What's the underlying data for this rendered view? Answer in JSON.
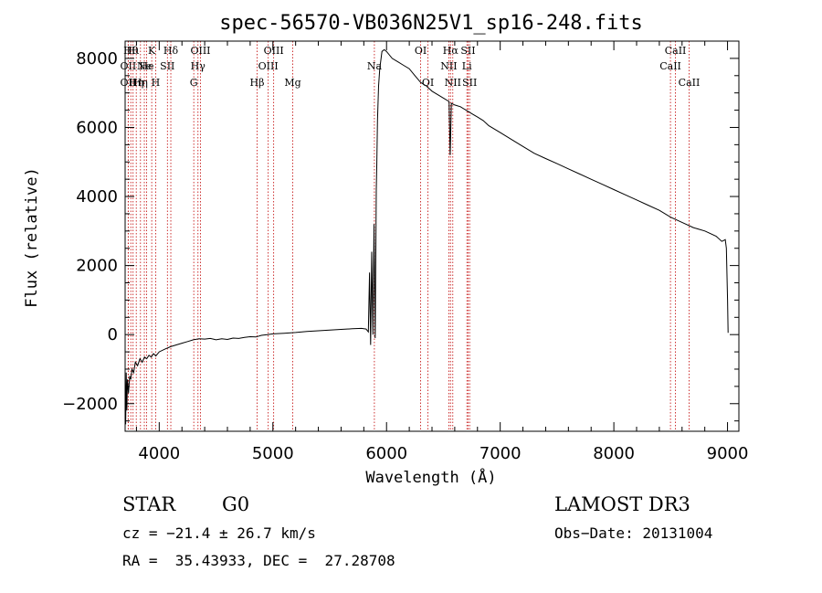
{
  "chart_data": {
    "type": "line",
    "title": "spec-56570-VB036N25V1_sp16-248.fits",
    "xlabel": "Wavelength (Å)",
    "ylabel": "Flux (relative)",
    "xlim": [
      3700,
      9100
    ],
    "ylim": [
      -2800,
      8500
    ],
    "xticks": [
      4000,
      5000,
      6000,
      7000,
      8000,
      9000
    ],
    "yticks": [
      -2000,
      0,
      2000,
      4000,
      6000,
      8000
    ],
    "xtick_labels": [
      "4000",
      "5000",
      "6000",
      "7000",
      "8000",
      "9000"
    ],
    "ytick_labels": [
      "−2000",
      "0",
      "2000",
      "4000",
      "6000",
      "8000"
    ],
    "series": [
      {
        "name": "flux",
        "points": [
          [
            3700,
            -1400
          ],
          [
            3705,
            -2600
          ],
          [
            3710,
            -1100
          ],
          [
            3715,
            -2200
          ],
          [
            3720,
            -1300
          ],
          [
            3730,
            -1700
          ],
          [
            3740,
            -1200
          ],
          [
            3750,
            -1300
          ],
          [
            3760,
            -1000
          ],
          [
            3775,
            -1100
          ],
          [
            3790,
            -800
          ],
          [
            3810,
            -900
          ],
          [
            3830,
            -700
          ],
          [
            3850,
            -800
          ],
          [
            3870,
            -650
          ],
          [
            3890,
            -700
          ],
          [
            3910,
            -600
          ],
          [
            3930,
            -650
          ],
          [
            3950,
            -550
          ],
          [
            3970,
            -620
          ],
          [
            4000,
            -500
          ],
          [
            4050,
            -420
          ],
          [
            4100,
            -350
          ],
          [
            4150,
            -300
          ],
          [
            4200,
            -250
          ],
          [
            4250,
            -200
          ],
          [
            4300,
            -150
          ],
          [
            4350,
            -120
          ],
          [
            4400,
            -130
          ],
          [
            4450,
            -110
          ],
          [
            4500,
            -150
          ],
          [
            4550,
            -120
          ],
          [
            4600,
            -140
          ],
          [
            4650,
            -100
          ],
          [
            4700,
            -110
          ],
          [
            4750,
            -80
          ],
          [
            4800,
            -60
          ],
          [
            4850,
            -70
          ],
          [
            4900,
            -20
          ],
          [
            4950,
            0
          ],
          [
            5000,
            20
          ],
          [
            5100,
            40
          ],
          [
            5200,
            60
          ],
          [
            5300,
            90
          ],
          [
            5400,
            110
          ],
          [
            5500,
            130
          ],
          [
            5600,
            150
          ],
          [
            5700,
            170
          ],
          [
            5780,
            180
          ],
          [
            5820,
            160
          ],
          [
            5840,
            80
          ],
          [
            5850,
            1800
          ],
          [
            5860,
            -300
          ],
          [
            5870,
            2400
          ],
          [
            5880,
            0
          ],
          [
            5890,
            3200
          ],
          [
            5900,
            -100
          ],
          [
            5910,
            4200
          ],
          [
            5915,
            5000
          ],
          [
            5920,
            6200
          ],
          [
            5930,
            7200
          ],
          [
            5940,
            7700
          ],
          [
            5960,
            8200
          ],
          [
            5980,
            8250
          ],
          [
            6000,
            8200
          ],
          [
            6050,
            8000
          ],
          [
            6100,
            7900
          ],
          [
            6150,
            7800
          ],
          [
            6200,
            7700
          ],
          [
            6250,
            7500
          ],
          [
            6300,
            7300
          ],
          [
            6350,
            7200
          ],
          [
            6400,
            7050
          ],
          [
            6450,
            6950
          ],
          [
            6500,
            6850
          ],
          [
            6550,
            6750
          ],
          [
            6560,
            5200
          ],
          [
            6570,
            6700
          ],
          [
            6600,
            6650
          ],
          [
            6650,
            6600
          ],
          [
            6700,
            6500
          ],
          [
            6750,
            6400
          ],
          [
            6800,
            6300
          ],
          [
            6850,
            6200
          ],
          [
            6900,
            6050
          ],
          [
            7000,
            5850
          ],
          [
            7100,
            5650
          ],
          [
            7200,
            5450
          ],
          [
            7300,
            5250
          ],
          [
            7400,
            5100
          ],
          [
            7500,
            4950
          ],
          [
            7600,
            4800
          ],
          [
            7700,
            4650
          ],
          [
            7800,
            4500
          ],
          [
            7900,
            4350
          ],
          [
            8000,
            4200
          ],
          [
            8100,
            4050
          ],
          [
            8200,
            3900
          ],
          [
            8300,
            3750
          ],
          [
            8400,
            3600
          ],
          [
            8500,
            3400
          ],
          [
            8600,
            3250
          ],
          [
            8700,
            3100
          ],
          [
            8800,
            3000
          ],
          [
            8900,
            2850
          ],
          [
            8950,
            2700
          ],
          [
            8980,
            2750
          ],
          [
            8990,
            2500
          ],
          [
            9000,
            1000
          ],
          [
            9005,
            50
          ]
        ]
      }
    ],
    "lines": [
      {
        "wl": 3727,
        "label": "OII",
        "row": 1
      },
      {
        "wl": 3727,
        "label": "OII",
        "row": 2
      },
      {
        "wl": 3750,
        "label": "Hθ",
        "row": 0
      },
      {
        "wl": 3770,
        "label": "Hι",
        "row": 0
      },
      {
        "wl": 3798,
        "label": "Hη",
        "row": 2
      },
      {
        "wl": 3835,
        "label": "Hη",
        "row": 2
      },
      {
        "wl": 3869,
        "label": "Ne",
        "row": 1
      },
      {
        "wl": 3889,
        "label": "He",
        "row": 1
      },
      {
        "wl": 3934,
        "label": "K",
        "row": 0
      },
      {
        "wl": 3969,
        "label": "H",
        "row": 2
      },
      {
        "wl": 4072,
        "label": "SII",
        "row": 1
      },
      {
        "wl": 4102,
        "label": "Hδ",
        "row": 0
      },
      {
        "wl": 4304,
        "label": "G",
        "row": 2
      },
      {
        "wl": 4341,
        "label": "Hγ",
        "row": 1
      },
      {
        "wl": 4363,
        "label": "OIII",
        "row": 0
      },
      {
        "wl": 4861,
        "label": "Hβ",
        "row": 2
      },
      {
        "wl": 4959,
        "label": "OIII",
        "row": 1
      },
      {
        "wl": 5007,
        "label": "OIII",
        "row": 0
      },
      {
        "wl": 5175,
        "label": "Mg",
        "row": 2
      },
      {
        "wl": 5893,
        "label": "Na",
        "row": 1
      },
      {
        "wl": 6300,
        "label": "OI",
        "row": 0
      },
      {
        "wl": 6364,
        "label": "OI",
        "row": 2
      },
      {
        "wl": 6548,
        "label": "NII",
        "row": 1
      },
      {
        "wl": 6563,
        "label": "Hα",
        "row": 0
      },
      {
        "wl": 6583,
        "label": "NII",
        "row": 2
      },
      {
        "wl": 6707,
        "label": "Li",
        "row": 1
      },
      {
        "wl": 6717,
        "label": "SII",
        "row": 0
      },
      {
        "wl": 6731,
        "label": "SII",
        "row": 2
      },
      {
        "wl": 8498,
        "label": "CaII",
        "row": 1
      },
      {
        "wl": 8542,
        "label": "CaII",
        "row": 0
      },
      {
        "wl": 8662,
        "label": "CaII",
        "row": 2
      }
    ]
  },
  "info": {
    "class": "STAR",
    "subclass": "G0",
    "survey": "LAMOST DR3",
    "cz": "cz = −21.4 ± 26.7 km/s",
    "obs_date": "Obs−Date: 20131004",
    "radec": "RA =  35.43933, DEC =  27.28708"
  }
}
